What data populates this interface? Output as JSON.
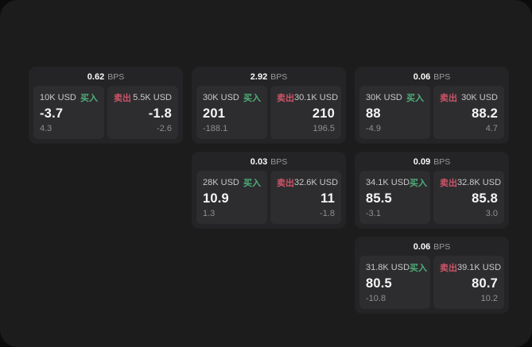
{
  "labels": {
    "bps": "BPS",
    "buy": "买入",
    "sell": "卖出"
  },
  "colors": {
    "buy": "#4fae7a",
    "sell": "#cd5468"
  },
  "cards": [
    {
      "row": 1,
      "col": 1,
      "bps": "0.62",
      "buy": {
        "amount": "10K USD",
        "value": "-3.7",
        "sub": "4.3"
      },
      "sell": {
        "amount": "5.5K USD",
        "value": "-1.8",
        "sub": "-2.6"
      }
    },
    {
      "row": 1,
      "col": 2,
      "bps": "2.92",
      "buy": {
        "amount": "30K USD",
        "value": "201",
        "sub": "-188.1"
      },
      "sell": {
        "amount": "30.1K USD",
        "value": "210",
        "sub": "196.5"
      }
    },
    {
      "row": 1,
      "col": 3,
      "bps": "0.06",
      "buy": {
        "amount": "30K USD",
        "value": "88",
        "sub": "-4.9"
      },
      "sell": {
        "amount": "30K USD",
        "value": "88.2",
        "sub": "4.7"
      }
    },
    {
      "row": 2,
      "col": 2,
      "bps": "0.03",
      "buy": {
        "amount": "28K USD",
        "value": "10.9",
        "sub": "1.3"
      },
      "sell": {
        "amount": "32.6K USD",
        "value": "11",
        "sub": "-1.8"
      }
    },
    {
      "row": 2,
      "col": 3,
      "bps": "0.09",
      "buy": {
        "amount": "34.1K USD",
        "value": "85.5",
        "sub": "-3.1"
      },
      "sell": {
        "amount": "32.8K USD",
        "value": "85.8",
        "sub": "3.0"
      }
    },
    {
      "row": 3,
      "col": 3,
      "bps": "0.06",
      "buy": {
        "amount": "31.8K USD",
        "value": "80.5",
        "sub": "-10.8"
      },
      "sell": {
        "amount": "39.1K USD",
        "value": "80.7",
        "sub": "10.2"
      }
    }
  ]
}
